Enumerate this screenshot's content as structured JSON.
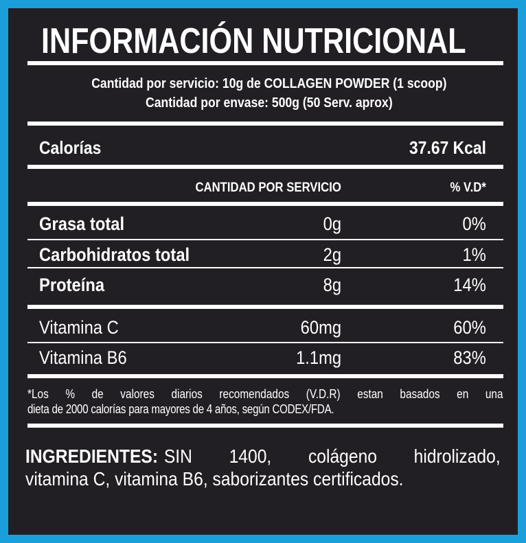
{
  "title": "INFORMACIÓN NUTRICIONAL",
  "serving": {
    "per_serving": "Cantidad por servicio: 10g de COLLAGEN POWDER (1 scoop)",
    "per_container": "Cantidad por envase: 500g (50 Serv. aprox)"
  },
  "calories": {
    "label": "Calorías",
    "value": "37.67 Kcal"
  },
  "header": {
    "amount": "CANTIDAD POR SERVICIO",
    "dv": "% V.D*"
  },
  "nutrients": [
    {
      "name": "Grasa total",
      "amount": "0g",
      "dv": "0%"
    },
    {
      "name": "Carbohidratos total",
      "amount": "2g",
      "dv": "1%"
    },
    {
      "name": "Proteína",
      "amount": "8g",
      "dv": "14%"
    }
  ],
  "vitamins": [
    {
      "name": "Vitamina C",
      "amount": "60mg",
      "dv": "60%"
    },
    {
      "name": "Vitamina B6",
      "amount": "1.1mg",
      "dv": "83%"
    }
  ],
  "footnote": {
    "line1": "*Los % de valores diarios recomendados (V.D.R) estan basados en una",
    "line2": "dieta de 2000 calorías para mayores de 4 años, según CODEX/FDA."
  },
  "ingredients": {
    "label": "INGREDIENTES:",
    "line1_text": "SIN 1400, colágeno hidrolizado,",
    "line2": "vitamina C, vitamina B6, saborizantes certificados."
  },
  "colors": {
    "border": "#1a9fdb",
    "background": "#221f24",
    "text": "#ffffff"
  }
}
